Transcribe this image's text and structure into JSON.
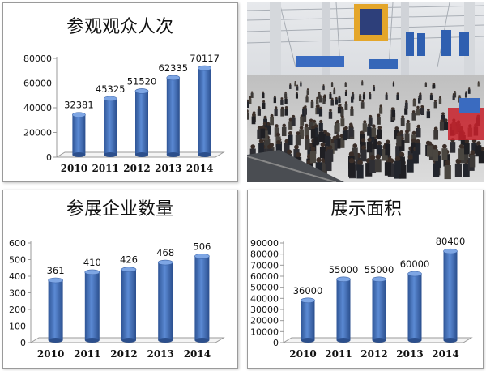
{
  "chart_data": [
    {
      "type": "bar",
      "title": "参观观众人次",
      "categories": [
        "2010",
        "2011",
        "2012",
        "2013",
        "2014"
      ],
      "values": [
        32381,
        45325,
        51520,
        62335,
        70117
      ],
      "ylim": [
        0,
        80000
      ],
      "yticks": [
        "0",
        "20000",
        "40000",
        "60000",
        "80000"
      ],
      "data_labels": [
        "32381",
        "45325",
        "51520",
        "62335",
        "70117"
      ],
      "xlabel": "",
      "ylabel": "",
      "grid": false,
      "bar_color": "#3f6fb5"
    },
    {
      "type": "bar",
      "title": "参展企业数量",
      "categories": [
        "2010",
        "2011",
        "2012",
        "2013",
        "2014"
      ],
      "values": [
        361,
        410,
        426,
        468,
        506
      ],
      "ylim": [
        0,
        600
      ],
      "yticks": [
        "0",
        "100",
        "200",
        "300",
        "400",
        "500",
        "600"
      ],
      "data_labels": [
        "361",
        "410",
        "426",
        "468",
        "506"
      ],
      "xlabel": "",
      "ylabel": "",
      "grid": false,
      "bar_color": "#3f6fb5"
    },
    {
      "type": "bar",
      "title": "展示面积",
      "categories": [
        "2010",
        "2011",
        "2012",
        "2013",
        "2014"
      ],
      "values": [
        36000,
        55000,
        55000,
        60000,
        80400
      ],
      "ylim": [
        0,
        90000
      ],
      "yticks": [
        "0",
        "10000",
        "20000",
        "30000",
        "40000",
        "50000",
        "60000",
        "70000",
        "80000",
        "90000"
      ],
      "data_labels": [
        "36000",
        "55000",
        "55000",
        "60000",
        "80400"
      ],
      "xlabel": "",
      "ylabel": "",
      "grid": false,
      "bar_color": "#3f6fb5"
    }
  ]
}
